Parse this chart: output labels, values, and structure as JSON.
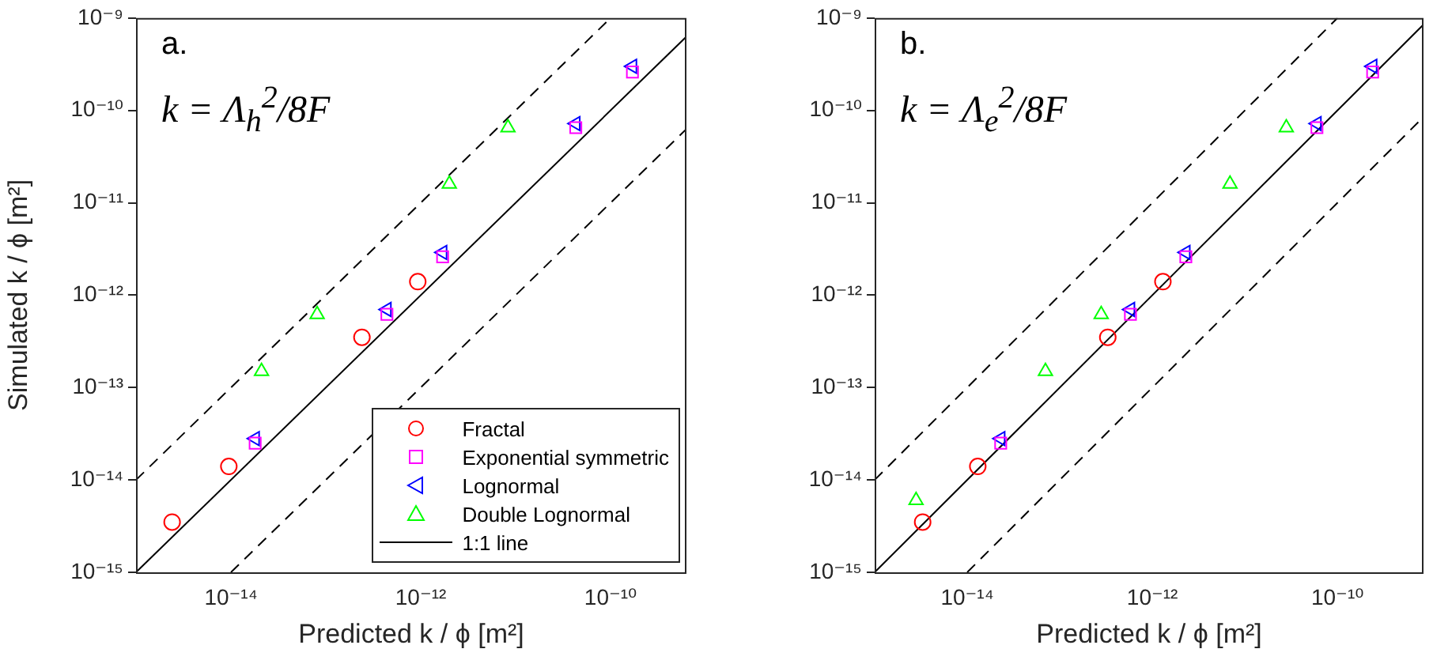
{
  "chart_data": [
    {
      "type": "scatter",
      "xlabel": "Predicted k / ϕ [m²]",
      "ylabel": "Simulated k / ϕ [m²]",
      "log": "xy",
      "legend": "bottom right",
      "xlim": [
        1e-15,
        6.3e-10
      ],
      "ylim": [
        1e-15,
        1e-09
      ],
      "xticks": [
        {
          "value": 1e-14,
          "label": "10⁻¹⁴"
        },
        {
          "value": 1e-12,
          "label": "10⁻¹²"
        },
        {
          "value": 1e-10,
          "label": "10⁻¹⁰"
        }
      ],
      "yticks": [
        {
          "value": 1e-15,
          "label": "10⁻¹⁵"
        },
        {
          "value": 1e-14,
          "label": "10⁻¹⁴"
        },
        {
          "value": 1e-13,
          "label": "10⁻¹³"
        },
        {
          "value": 1e-12,
          "label": "10⁻¹²"
        },
        {
          "value": 1e-11,
          "label": "10⁻¹¹"
        },
        {
          "value": 1e-10,
          "label": "10⁻¹⁰"
        },
        {
          "value": 1e-09,
          "label": "10⁻⁹"
        }
      ],
      "annotations": [
        "a.",
        "k = Λ$_{h}$$^{2}$/8F"
      ],
      "series": [
        {
          "name": "Fractal",
          "type": "scatter",
          "marker": "circle",
          "color": "#ff0000",
          "x": [
            2.4e-15,
            9.5e-15,
            2.4e-13,
            9.3e-13
          ],
          "values": [
            3.5e-15,
            1.4e-14,
            3.5e-13,
            1.4e-12
          ]
        },
        {
          "name": "Exponential symmetric",
          "type": "scatter",
          "marker": "square",
          "color": "#ff00ff",
          "x": [
            1.8e-14,
            4.4e-13,
            1.7e-12,
            4.3e-11,
            1.7e-10
          ],
          "values": [
            2.5e-14,
            6.2e-13,
            2.6e-12,
            6.5e-11,
            2.6e-10
          ]
        },
        {
          "name": "Lognormal",
          "type": "scatter",
          "marker": "triangle-left",
          "color": "#0000ff",
          "x": [
            1.8e-14,
            4.4e-13,
            1.7e-12,
            4.3e-11,
            1.7e-10
          ],
          "values": [
            2.8e-14,
            7e-13,
            2.9e-12,
            7.2e-11,
            3e-10
          ]
        },
        {
          "name": "Double Lognormal",
          "type": "scatter",
          "marker": "triangle",
          "color": "#00ff00",
          "x": [
            2.1e-14,
            8.1e-14,
            2e-12,
            8.3e-12
          ],
          "values": [
            1.5e-13,
            6.2e-13,
            1.6e-11,
            6.5e-11
          ]
        },
        {
          "name": "1:1 line",
          "type": "line",
          "marker": "none",
          "line_style": "solid",
          "color": "#000000",
          "x": [
            1e-15,
            6.3e-10
          ],
          "values": [
            1e-15,
            6.3e-10
          ]
        },
        {
          "type": "line",
          "marker": "none",
          "line_style": "dashed",
          "color": "#000000",
          "x": [
            1e-15,
            1e-10
          ],
          "values": [
            1e-14,
            1e-09
          ]
        },
        {
          "type": "line",
          "marker": "none",
          "line_style": "dashed",
          "color": "#000000",
          "x": [
            1e-14,
            6.3e-10
          ],
          "values": [
            1e-15,
            6.3e-11
          ]
        }
      ]
    },
    {
      "type": "scatter",
      "xlabel": "Predicted k / ϕ [m²]",
      "log": "xy",
      "xlim": [
        1e-15,
        8.5e-10
      ],
      "ylim": [
        1e-15,
        1e-09
      ],
      "xticks": [
        {
          "value": 1e-14,
          "label": "10⁻¹⁴"
        },
        {
          "value": 1e-12,
          "label": "10⁻¹²"
        },
        {
          "value": 1e-10,
          "label": "10⁻¹⁰"
        }
      ],
      "yticks": [
        {
          "value": 1e-15,
          "label": "10⁻¹⁵"
        },
        {
          "value": 1e-14,
          "label": "10⁻¹⁴"
        },
        {
          "value": 1e-13,
          "label": "10⁻¹³"
        },
        {
          "value": 1e-12,
          "label": "10⁻¹²"
        },
        {
          "value": 1e-11,
          "label": "10⁻¹¹"
        },
        {
          "value": 1e-10,
          "label": "10⁻¹⁰"
        },
        {
          "value": 1e-09,
          "label": "10⁻⁹"
        }
      ],
      "annotations": [
        "b.",
        "k = Λ$_{e}$$^{2}$/8F"
      ],
      "series": [
        {
          "type": "scatter",
          "marker": "circle",
          "color": "#ff0000",
          "x": [
            3.3e-15,
            1.3e-14,
            3.3e-13,
            1.3e-12
          ],
          "values": [
            3.5e-15,
            1.4e-14,
            3.5e-13,
            1.4e-12
          ]
        },
        {
          "type": "scatter",
          "marker": "square",
          "color": "#ff00ff",
          "x": [
            2.3e-14,
            5.8e-13,
            2.3e-12,
            6e-11,
            2.4e-10
          ],
          "values": [
            2.5e-14,
            6.2e-13,
            2.6e-12,
            6.5e-11,
            2.6e-10
          ]
        },
        {
          "type": "scatter",
          "marker": "triangle-left",
          "color": "#0000ff",
          "x": [
            2.3e-14,
            5.8e-13,
            2.3e-12,
            6e-11,
            2.4e-10
          ],
          "values": [
            2.8e-14,
            7e-13,
            2.9e-12,
            7.2e-11,
            3e-10
          ]
        },
        {
          "type": "scatter",
          "marker": "triangle",
          "color": "#00ff00",
          "x": [
            2.8e-15,
            7e-14,
            2.8e-13,
            6.9e-12,
            2.8e-11
          ],
          "values": [
            6e-15,
            1.5e-13,
            6.2e-13,
            1.6e-11,
            6.5e-11
          ]
        },
        {
          "type": "line",
          "marker": "none",
          "line_style": "solid",
          "color": "#000000",
          "x": [
            1e-15,
            8.5e-10
          ],
          "values": [
            1e-15,
            8.5e-10
          ]
        },
        {
          "type": "line",
          "marker": "none",
          "line_style": "dashed",
          "color": "#000000",
          "x": [
            1e-15,
            1e-10
          ],
          "values": [
            1e-14,
            1e-09
          ]
        },
        {
          "type": "line",
          "marker": "none",
          "line_style": "dashed",
          "color": "#000000",
          "x": [
            1e-14,
            8.5e-10
          ],
          "values": [
            1e-15,
            8.5e-11
          ]
        }
      ]
    }
  ]
}
